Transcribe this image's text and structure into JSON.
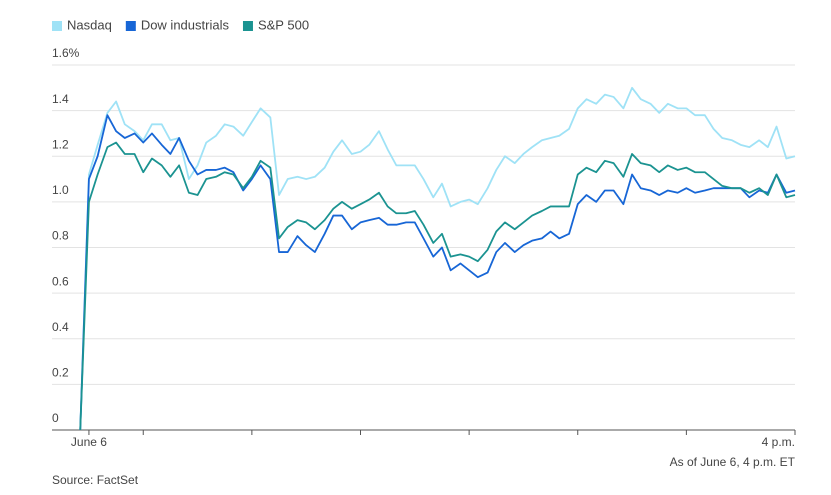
{
  "chart_data": {
    "type": "line",
    "x": [
      9.42,
      9.5,
      9.58,
      9.67,
      9.75,
      9.83,
      9.92,
      10,
      10.08,
      10.17,
      10.25,
      10.33,
      10.42,
      10.5,
      10.58,
      10.67,
      10.75,
      10.83,
      10.92,
      11,
      11.08,
      11.17,
      11.25,
      11.33,
      11.42,
      11.5,
      11.58,
      11.67,
      11.75,
      11.83,
      11.92,
      12,
      12.08,
      12.17,
      12.25,
      12.33,
      12.42,
      12.5,
      12.58,
      12.67,
      12.75,
      12.83,
      12.92,
      13,
      13.08,
      13.17,
      13.25,
      13.33,
      13.42,
      13.5,
      13.58,
      13.67,
      13.75,
      13.83,
      13.92,
      14,
      14.08,
      14.17,
      14.25,
      14.33,
      14.42,
      14.5,
      14.58,
      14.67,
      14.75,
      14.83,
      14.92,
      15,
      15.08,
      15.17,
      15.25,
      15.33,
      15.42,
      15.5,
      15.58,
      15.67,
      15.75,
      15.83,
      15.92,
      16
    ],
    "series": [
      {
        "name": "Nasdaq",
        "color": "#9fe2f6",
        "values": [
          0,
          1.12,
          1.25,
          1.39,
          1.44,
          1.34,
          1.31,
          1.27,
          1.34,
          1.34,
          1.27,
          1.28,
          1.1,
          1.16,
          1.26,
          1.29,
          1.34,
          1.33,
          1.29,
          1.35,
          1.41,
          1.37,
          1.03,
          1.1,
          1.11,
          1.1,
          1.11,
          1.15,
          1.22,
          1.27,
          1.21,
          1.22,
          1.25,
          1.31,
          1.23,
          1.16,
          1.16,
          1.16,
          1.1,
          1.02,
          1.08,
          0.98,
          1.0,
          1.01,
          0.99,
          1.06,
          1.14,
          1.2,
          1.17,
          1.21,
          1.24,
          1.27,
          1.28,
          1.29,
          1.32,
          1.41,
          1.45,
          1.43,
          1.47,
          1.46,
          1.41,
          1.5,
          1.45,
          1.43,
          1.39,
          1.43,
          1.41,
          1.41,
          1.38,
          1.38,
          1.32,
          1.28,
          1.27,
          1.25,
          1.24,
          1.27,
          1.24,
          1.33,
          1.19,
          1.2
        ]
      },
      {
        "name": "Dow industrials",
        "color": "#1766d6",
        "values": [
          0,
          1.1,
          1.2,
          1.38,
          1.31,
          1.28,
          1.3,
          1.26,
          1.3,
          1.25,
          1.21,
          1.28,
          1.18,
          1.12,
          1.14,
          1.14,
          1.15,
          1.13,
          1.05,
          1.1,
          1.16,
          1.1,
          0.78,
          0.78,
          0.85,
          0.81,
          0.78,
          0.86,
          0.94,
          0.94,
          0.88,
          0.91,
          0.92,
          0.93,
          0.9,
          0.9,
          0.91,
          0.91,
          0.84,
          0.76,
          0.8,
          0.7,
          0.73,
          0.7,
          0.67,
          0.69,
          0.78,
          0.82,
          0.78,
          0.81,
          0.83,
          0.84,
          0.87,
          0.84,
          0.86,
          0.99,
          1.03,
          1.0,
          1.05,
          1.05,
          0.99,
          1.12,
          1.06,
          1.05,
          1.03,
          1.05,
          1.04,
          1.06,
          1.04,
          1.05,
          1.06,
          1.06,
          1.06,
          1.06,
          1.02,
          1.05,
          1.04,
          1.12,
          1.04,
          1.05
        ]
      },
      {
        "name": "S&P 500",
        "color": "#1b9391",
        "values": [
          0,
          1.0,
          1.12,
          1.24,
          1.26,
          1.21,
          1.21,
          1.13,
          1.19,
          1.16,
          1.11,
          1.16,
          1.04,
          1.03,
          1.1,
          1.11,
          1.13,
          1.12,
          1.06,
          1.11,
          1.18,
          1.15,
          0.84,
          0.89,
          0.92,
          0.91,
          0.88,
          0.92,
          0.97,
          1.0,
          0.97,
          0.99,
          1.01,
          1.04,
          0.98,
          0.95,
          0.95,
          0.96,
          0.9,
          0.82,
          0.86,
          0.76,
          0.77,
          0.76,
          0.74,
          0.79,
          0.87,
          0.91,
          0.88,
          0.91,
          0.94,
          0.96,
          0.98,
          0.98,
          0.98,
          1.12,
          1.15,
          1.13,
          1.18,
          1.17,
          1.11,
          1.21,
          1.17,
          1.16,
          1.13,
          1.16,
          1.14,
          1.15,
          1.13,
          1.13,
          1.1,
          1.07,
          1.06,
          1.06,
          1.04,
          1.06,
          1.03,
          1.12,
          1.02,
          1.03
        ]
      }
    ],
    "xlim": [
      9.16,
      16
    ],
    "xticks": [
      {
        "value": 9.5,
        "label": "June 6"
      },
      {
        "value": 16,
        "label": "4 p.m."
      }
    ],
    "xminor_ticks": [
      10,
      11,
      12,
      13,
      14,
      15
    ],
    "ylim": [
      0,
      1.6
    ],
    "yticks": [
      0,
      0.2,
      0.4,
      0.6,
      0.8,
      {
        "value": 1,
        "label": "1.0"
      },
      1.2,
      1.4,
      {
        "value": 1.6,
        "label": "1.6%"
      }
    ],
    "grid": true,
    "legend": "top-left",
    "note": "As of June 6, 4 p.m. ET",
    "source": "Source: FactSet"
  }
}
